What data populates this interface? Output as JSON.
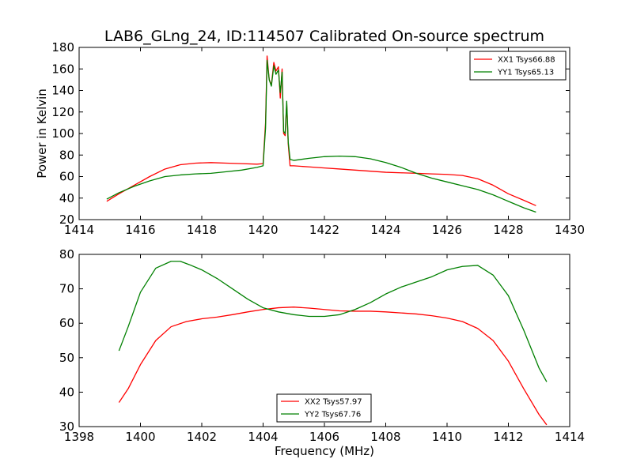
{
  "figure": {
    "title": "LAB6_GLng_24, ID:114507 Calibrated On-source spectrum"
  },
  "chart_data": [
    {
      "type": "line",
      "title": "LAB6_GLng_24, ID:114507 Calibrated On-source spectrum",
      "xlabel": "",
      "ylabel": "Power in Kelvin",
      "xlim": [
        1414,
        1430
      ],
      "ylim": [
        20,
        180
      ],
      "x_ticks": [
        "1414",
        "1416",
        "1418",
        "1420",
        "1422",
        "1424",
        "1426",
        "1428",
        "1430"
      ],
      "y_ticks": [
        "20",
        "40",
        "60",
        "80",
        "100",
        "120",
        "140",
        "160",
        "180"
      ],
      "grid": false,
      "legend_position": "top-right",
      "series": [
        {
          "name": "XX1 Tsys66.88",
          "color": "#ff0000",
          "points": [
            [
              1414.9,
              37
            ],
            [
              1415.3,
              44
            ],
            [
              1415.8,
              52
            ],
            [
              1416.3,
              60
            ],
            [
              1416.8,
              67
            ],
            [
              1417.3,
              71
            ],
            [
              1417.8,
              72.5
            ],
            [
              1418.3,
              73
            ],
            [
              1418.8,
              72.5
            ],
            [
              1419.3,
              72
            ],
            [
              1419.8,
              71.5
            ],
            [
              1420.0,
              72
            ],
            [
              1420.08,
              110
            ],
            [
              1420.13,
              172
            ],
            [
              1420.2,
              150
            ],
            [
              1420.27,
              145
            ],
            [
              1420.35,
              166
            ],
            [
              1420.42,
              158
            ],
            [
              1420.5,
              162
            ],
            [
              1420.56,
              133
            ],
            [
              1420.62,
              160
            ],
            [
              1420.67,
              100
            ],
            [
              1420.72,
              98
            ],
            [
              1420.77,
              128
            ],
            [
              1420.82,
              90
            ],
            [
              1420.88,
              70
            ],
            [
              1421.0,
              70
            ],
            [
              1421.5,
              69
            ],
            [
              1422,
              68
            ],
            [
              1422.5,
              67
            ],
            [
              1423,
              66
            ],
            [
              1423.5,
              65
            ],
            [
              1424,
              64
            ],
            [
              1424.5,
              63.5
            ],
            [
              1425,
              63
            ],
            [
              1425.5,
              62.5
            ],
            [
              1426,
              62
            ],
            [
              1426.5,
              61
            ],
            [
              1427,
              58
            ],
            [
              1427.5,
              52
            ],
            [
              1428,
              44
            ],
            [
              1428.5,
              38
            ],
            [
              1428.9,
              33
            ]
          ]
        },
        {
          "name": "YY1 Tsys65.13",
          "color": "#008000",
          "points": [
            [
              1414.9,
              39
            ],
            [
              1415.3,
              45
            ],
            [
              1415.8,
              51
            ],
            [
              1416.3,
              56
            ],
            [
              1416.8,
              60
            ],
            [
              1417.3,
              61.5
            ],
            [
              1417.8,
              62.5
            ],
            [
              1418.3,
              63
            ],
            [
              1418.8,
              64.5
            ],
            [
              1419.3,
              66
            ],
            [
              1419.8,
              68.5
            ],
            [
              1420.0,
              70
            ],
            [
              1420.08,
              105
            ],
            [
              1420.13,
              168
            ],
            [
              1420.2,
              150
            ],
            [
              1420.27,
              144
            ],
            [
              1420.35,
              163
            ],
            [
              1420.42,
              155
            ],
            [
              1420.5,
              159
            ],
            [
              1420.56,
              138
            ],
            [
              1420.62,
              157
            ],
            [
              1420.67,
              102
            ],
            [
              1420.72,
              100
            ],
            [
              1420.77,
              130
            ],
            [
              1420.82,
              92
            ],
            [
              1420.88,
              76
            ],
            [
              1421.0,
              75
            ],
            [
              1421.5,
              77
            ],
            [
              1422,
              78.5
            ],
            [
              1422.5,
              79
            ],
            [
              1423,
              78.5
            ],
            [
              1423.5,
              76.5
            ],
            [
              1424,
              73
            ],
            [
              1424.5,
              68.5
            ],
            [
              1425,
              63
            ],
            [
              1425.5,
              58.5
            ],
            [
              1426,
              55
            ],
            [
              1426.5,
              51.5
            ],
            [
              1427,
              48
            ],
            [
              1427.5,
              43
            ],
            [
              1428,
              37
            ],
            [
              1428.5,
              31
            ],
            [
              1428.9,
              27
            ]
          ]
        }
      ]
    },
    {
      "type": "line",
      "title": "",
      "xlabel": "Frequency (MHz)",
      "ylabel": "",
      "xlim": [
        1398,
        1414
      ],
      "ylim": [
        30,
        80
      ],
      "x_ticks": [
        "1398",
        "1400",
        "1402",
        "1404",
        "1406",
        "1408",
        "1410",
        "1412",
        "1414"
      ],
      "y_ticks": [
        "30",
        "40",
        "50",
        "60",
        "70",
        "80"
      ],
      "grid": false,
      "legend_position": "bottom-center",
      "series": [
        {
          "name": "XX2 Tsys57.97",
          "color": "#ff0000",
          "points": [
            [
              1399.3,
              37
            ],
            [
              1399.6,
              41
            ],
            [
              1400.0,
              48
            ],
            [
              1400.5,
              55
            ],
            [
              1401.0,
              59
            ],
            [
              1401.5,
              60.5
            ],
            [
              1402.0,
              61.3
            ],
            [
              1402.5,
              61.8
            ],
            [
              1403.0,
              62.5
            ],
            [
              1403.5,
              63.3
            ],
            [
              1404.0,
              64
            ],
            [
              1404.5,
              64.5
            ],
            [
              1405.0,
              64.7
            ],
            [
              1405.5,
              64.4
            ],
            [
              1406.0,
              64
            ],
            [
              1406.5,
              63.6
            ],
            [
              1407.0,
              63.5
            ],
            [
              1407.5,
              63.5
            ],
            [
              1408.0,
              63.3
            ],
            [
              1408.5,
              63
            ],
            [
              1409.0,
              62.7
            ],
            [
              1409.5,
              62.2
            ],
            [
              1410.0,
              61.5
            ],
            [
              1410.5,
              60.5
            ],
            [
              1411.0,
              58.5
            ],
            [
              1411.5,
              55
            ],
            [
              1412.0,
              49
            ],
            [
              1412.5,
              41
            ],
            [
              1413.0,
              33.5
            ],
            [
              1413.25,
              30.5
            ]
          ]
        },
        {
          "name": "YY2 Tsys67.76",
          "color": "#008000",
          "points": [
            [
              1399.3,
              52
            ],
            [
              1399.6,
              59
            ],
            [
              1400.0,
              69
            ],
            [
              1400.5,
              76
            ],
            [
              1401.0,
              78
            ],
            [
              1401.3,
              78
            ],
            [
              1401.6,
              77
            ],
            [
              1402.0,
              75.5
            ],
            [
              1402.5,
              73
            ],
            [
              1403.0,
              70
            ],
            [
              1403.5,
              67
            ],
            [
              1404.0,
              64.5
            ],
            [
              1404.5,
              63.3
            ],
            [
              1405.0,
              62.5
            ],
            [
              1405.5,
              62
            ],
            [
              1406.0,
              62
            ],
            [
              1406.5,
              62.5
            ],
            [
              1407.0,
              64
            ],
            [
              1407.5,
              66
            ],
            [
              1408.0,
              68.5
            ],
            [
              1408.5,
              70.5
            ],
            [
              1409.0,
              72
            ],
            [
              1409.5,
              73.5
            ],
            [
              1410.0,
              75.5
            ],
            [
              1410.5,
              76.5
            ],
            [
              1411.0,
              76.8
            ],
            [
              1411.5,
              74
            ],
            [
              1412.0,
              68
            ],
            [
              1412.5,
              58
            ],
            [
              1413.0,
              47
            ],
            [
              1413.25,
              43
            ]
          ]
        }
      ]
    }
  ]
}
